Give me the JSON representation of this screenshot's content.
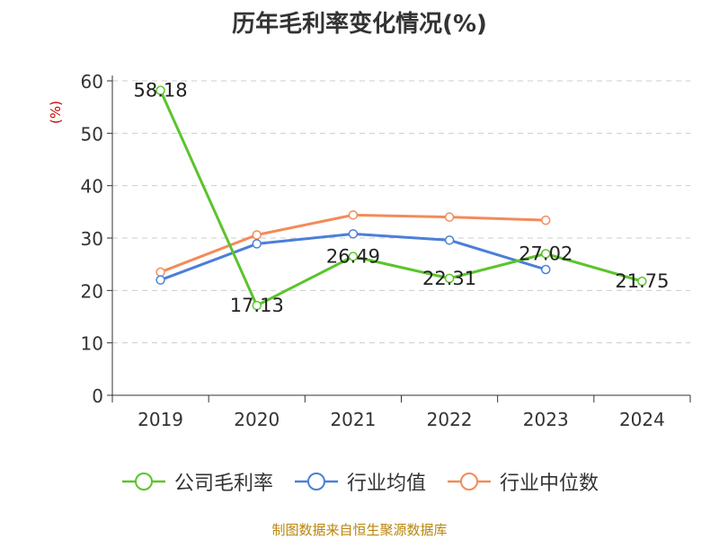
{
  "chart_data": {
    "type": "line",
    "title": "历年毛利率变化情况(%)",
    "ylabel": "(%)",
    "categories": [
      "2019",
      "2020",
      "2021",
      "2022",
      "2023",
      "2024"
    ],
    "ylim": [
      0,
      60
    ],
    "yticks": [
      0,
      10,
      20,
      30,
      40,
      50,
      60
    ],
    "grid": true,
    "legend_position": "bottom",
    "series": [
      {
        "name": "公司毛利率",
        "color": "#5bc42b",
        "labeled": true,
        "values": [
          58.18,
          17.13,
          26.49,
          22.31,
          27.02,
          21.75
        ]
      },
      {
        "name": "行业均值",
        "color": "#4a7fd9",
        "labeled": false,
        "values": [
          22.0,
          28.9,
          30.8,
          29.6,
          24.0,
          null
        ]
      },
      {
        "name": "行业中位数",
        "color": "#f28b5a",
        "labeled": false,
        "values": [
          23.5,
          30.6,
          34.4,
          34.0,
          33.4,
          null
        ]
      }
    ]
  },
  "footer": {
    "source": "制图数据来自恒生聚源数据库"
  }
}
